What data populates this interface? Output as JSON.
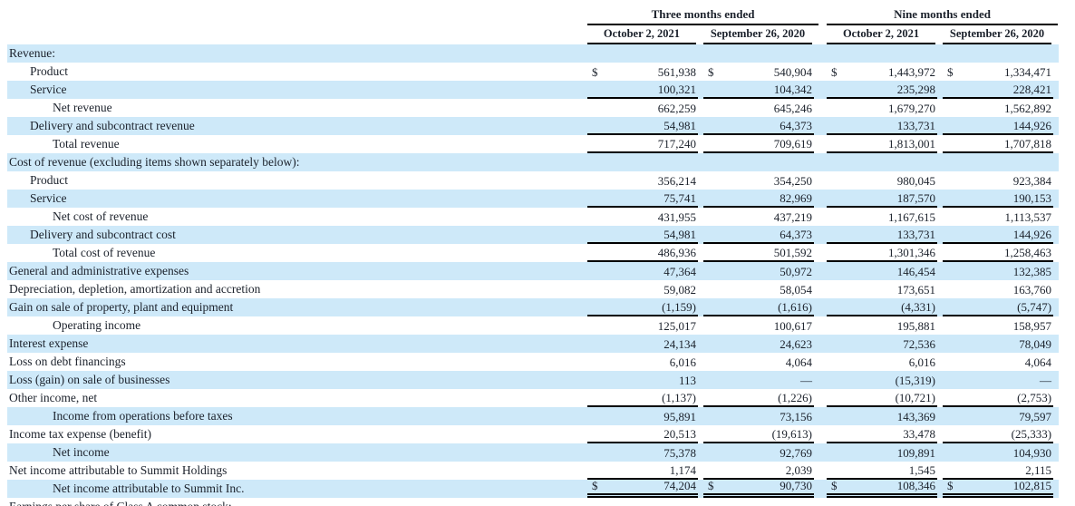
{
  "colors": {
    "stripe": "#cee9f9",
    "text": "#1b212b",
    "rule": "#000000"
  },
  "table": {
    "groups": [
      "Three months ended",
      "Nine months ended"
    ],
    "col_headers": [
      "October 2, 2021",
      "September 26, 2020",
      "October 2, 2021",
      "September 26, 2020"
    ],
    "rows": [
      {
        "label": "Revenue:",
        "indent": 0,
        "dollar": false,
        "rule": "",
        "values": [
          "",
          "",
          "",
          ""
        ]
      },
      {
        "label": "Product",
        "indent": 1,
        "dollar": true,
        "rule": "",
        "values": [
          "561,938",
          "540,904",
          "1,443,972",
          "1,334,471"
        ]
      },
      {
        "label": "Service",
        "indent": 1,
        "dollar": false,
        "rule": "single",
        "values": [
          "100,321",
          "104,342",
          "235,298",
          "228,421"
        ]
      },
      {
        "label": "Net revenue",
        "indent": 2,
        "dollar": false,
        "rule": "",
        "values": [
          "662,259",
          "645,246",
          "1,679,270",
          "1,562,892"
        ]
      },
      {
        "label": "Delivery and subcontract revenue",
        "indent": 1,
        "dollar": false,
        "rule": "single",
        "values": [
          "54,981",
          "64,373",
          "133,731",
          "144,926"
        ]
      },
      {
        "label": "Total revenue",
        "indent": 2,
        "dollar": false,
        "rule": "single",
        "values": [
          "717,240",
          "709,619",
          "1,813,001",
          "1,707,818"
        ]
      },
      {
        "label": "Cost of revenue (excluding items shown separately below):",
        "indent": 0,
        "dollar": false,
        "rule": "",
        "values": [
          "",
          "",
          "",
          ""
        ]
      },
      {
        "label": "Product",
        "indent": 1,
        "dollar": false,
        "rule": "",
        "values": [
          "356,214",
          "354,250",
          "980,045",
          "923,384"
        ]
      },
      {
        "label": "Service",
        "indent": 1,
        "dollar": false,
        "rule": "single",
        "values": [
          "75,741",
          "82,969",
          "187,570",
          "190,153"
        ]
      },
      {
        "label": "Net cost of revenue",
        "indent": 2,
        "dollar": false,
        "rule": "",
        "values": [
          "431,955",
          "437,219",
          "1,167,615",
          "1,113,537"
        ]
      },
      {
        "label": "Delivery and subcontract cost",
        "indent": 1,
        "dollar": false,
        "rule": "single",
        "values": [
          "54,981",
          "64,373",
          "133,731",
          "144,926"
        ]
      },
      {
        "label": "Total cost of revenue",
        "indent": 2,
        "dollar": false,
        "rule": "single",
        "values": [
          "486,936",
          "501,592",
          "1,301,346",
          "1,258,463"
        ]
      },
      {
        "label": "General and administrative expenses",
        "indent": 0,
        "dollar": false,
        "rule": "",
        "values": [
          "47,364",
          "50,972",
          "146,454",
          "132,385"
        ]
      },
      {
        "label": "Depreciation, depletion, amortization and accretion",
        "indent": 0,
        "dollar": false,
        "rule": "",
        "values": [
          "59,082",
          "58,054",
          "173,651",
          "163,760"
        ]
      },
      {
        "label": "Gain on sale of property, plant and equipment",
        "indent": 0,
        "dollar": false,
        "rule": "single",
        "values": [
          "(1,159)",
          "(1,616)",
          "(4,331)",
          "(5,747)"
        ]
      },
      {
        "label": "Operating income",
        "indent": 2,
        "dollar": false,
        "rule": "",
        "values": [
          "125,017",
          "100,617",
          "195,881",
          "158,957"
        ]
      },
      {
        "label": "Interest expense",
        "indent": 0,
        "dollar": false,
        "rule": "",
        "values": [
          "24,134",
          "24,623",
          "72,536",
          "78,049"
        ]
      },
      {
        "label": "Loss on debt financings",
        "indent": 0,
        "dollar": false,
        "rule": "",
        "values": [
          "6,016",
          "4,064",
          "6,016",
          "4,064"
        ]
      },
      {
        "label": "Loss (gain) on sale of businesses",
        "indent": 0,
        "dollar": false,
        "rule": "",
        "values": [
          "113",
          "—",
          "(15,319)",
          "—"
        ]
      },
      {
        "label": "Other income, net",
        "indent": 0,
        "dollar": false,
        "rule": "single",
        "values": [
          "(1,137)",
          "(1,226)",
          "(10,721)",
          "(2,753)"
        ]
      },
      {
        "label": "Income from operations before taxes",
        "indent": 2,
        "dollar": false,
        "rule": "",
        "values": [
          "95,891",
          "73,156",
          "143,369",
          "79,597"
        ]
      },
      {
        "label": "Income tax expense (benefit)",
        "indent": 0,
        "dollar": false,
        "rule": "single",
        "values": [
          "20,513",
          "(19,613)",
          "33,478",
          "(25,333)"
        ]
      },
      {
        "label": "Net income",
        "indent": 2,
        "dollar": false,
        "rule": "",
        "values": [
          "75,378",
          "92,769",
          "109,891",
          "104,930"
        ]
      },
      {
        "label": "Net income attributable to Summit Holdings",
        "indent": 0,
        "dollar": false,
        "rule": "single",
        "values": [
          "1,174",
          "2,039",
          "1,545",
          "2,115"
        ]
      },
      {
        "label": "Net income attributable to Summit Inc.",
        "indent": 2,
        "dollar": true,
        "rule": "double",
        "values": [
          "74,204",
          "90,730",
          "108,346",
          "102,815"
        ]
      },
      {
        "label": "Earnings per share of Class A common stock:",
        "indent": 0,
        "dollar": false,
        "rule": "",
        "values": [
          "",
          "",
          "",
          ""
        ]
      }
    ]
  }
}
